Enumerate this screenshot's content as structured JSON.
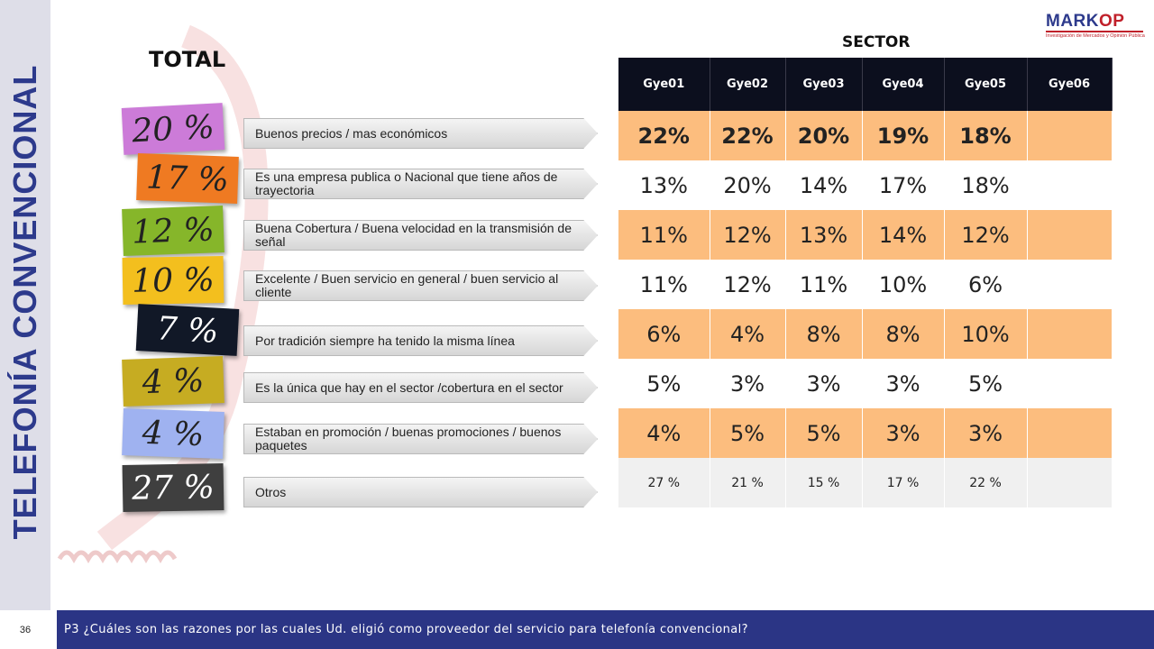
{
  "side_title": "TELEFONÍA CONVENCIONAL",
  "logo": {
    "word_a": "MARK",
    "word_b": "OP",
    "sub": "Investigación de Mercados y Opinión Pública"
  },
  "total_title": "TOTAL",
  "sector_title": "SECTOR",
  "colors": {
    "accent": "#2d3a8c",
    "highlight_row": "#fcbd7e",
    "header_bg": "#0c0f1e",
    "footer_bg": "#2b3585"
  },
  "reasons": [
    {
      "pct": "20 %",
      "label": "Buenos precios / mas económicos",
      "color": "#cc7bd8"
    },
    {
      "pct": "17 %",
      "label": "Es una empresa publica o Nacional  que tiene años de trayectoria",
      "color": "#ef7a22"
    },
    {
      "pct": "12 %",
      "label": "Buena Cobertura / Buena velocidad en la transmisión de señal",
      "color": "#86b62a"
    },
    {
      "pct": "10 %",
      "label": "Excelente / Buen servicio en general / buen servicio al cliente",
      "color": "#f3bf1e"
    },
    {
      "pct": "7 %",
      "label": "Por tradición siempre ha tenido la misma línea",
      "color": "#111827"
    },
    {
      "pct": "4 %",
      "label": "Es la única que hay en el sector /cobertura en el sector",
      "color": "#c6ac22"
    },
    {
      "pct": "4 %",
      "label": "Estaban en promoción / buenas promociones / buenos paquetes",
      "color": "#9fb2f0"
    },
    {
      "pct": "27 %",
      "label": "Otros",
      "color": "#3f3f3f"
    }
  ],
  "table": {
    "headers": [
      "Gye01",
      "Gye02",
      "Gye03",
      "Gye04",
      "Gye05",
      "Gye06"
    ],
    "rows": [
      [
        "22%",
        "22%",
        "20%",
        "19%",
        "18%",
        ""
      ],
      [
        "13%",
        "20%",
        "14%",
        "17%",
        "18%",
        ""
      ],
      [
        "11%",
        "12%",
        "13%",
        "14%",
        "12%",
        ""
      ],
      [
        "11%",
        "12%",
        "11%",
        "10%",
        "6%",
        ""
      ],
      [
        "6%",
        "4%",
        "8%",
        "8%",
        "10%",
        ""
      ],
      [
        "5%",
        "3%",
        "3%",
        "3%",
        "5%",
        ""
      ],
      [
        "4%",
        "5%",
        "5%",
        "3%",
        "3%",
        ""
      ],
      [
        "27 %",
        "21 %",
        "15 %",
        "17 %",
        "22 %",
        ""
      ]
    ]
  },
  "footer": {
    "page_number": "36",
    "question": "P3 ¿Cuáles son las razones por las cuales Ud. eligió como proveedor del servicio para telefonía convencional?"
  }
}
